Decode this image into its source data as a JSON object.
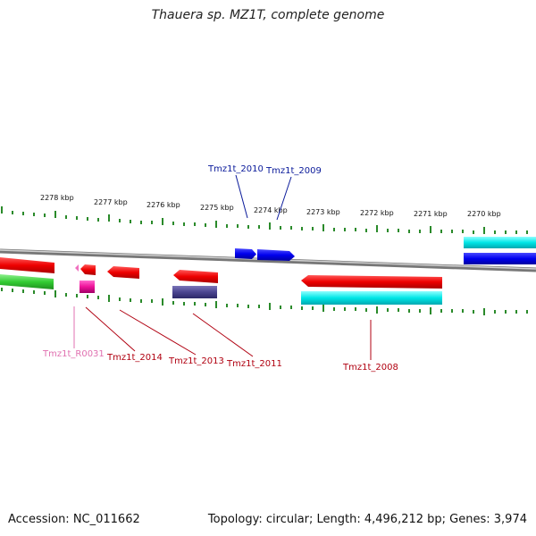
{
  "title": "Thauera sp. MZ1T, complete genome",
  "footer": {
    "accession": "Accession: NC_011662",
    "summary": "Topology: circular; Length: 4,496,212 bp; Genes: 3,974"
  },
  "colors": {
    "backbone": "#8a8a8a",
    "ticks": "#2a8a2a",
    "upper_label": "#0a1a9a",
    "lower_label": "#b00010",
    "rna_label": "#e070b0"
  },
  "kbp_ticks": [
    "2278 kbp",
    "2277 kbp",
    "2276 kbp",
    "2275 kbp",
    "2274 kbp",
    "2273 kbp",
    "2272 kbp",
    "2271 kbp",
    "2270 kbp"
  ],
  "gene_labels": [
    {
      "id": "Tmz1t_2010",
      "text": "Tmz1t_2010"
    },
    {
      "id": "Tmz1t_2009",
      "text": "Tmz1t_2009"
    },
    {
      "id": "Tmz1t_R0031",
      "text": "Tmz1t_R0031"
    },
    {
      "id": "Tmz1t_2014",
      "text": "Tmz1t_2014"
    },
    {
      "id": "Tmz1t_2013",
      "text": "Tmz1t_2013"
    },
    {
      "id": "Tmz1t_2011",
      "text": "Tmz1t_2011"
    },
    {
      "id": "Tmz1t_2008",
      "text": "Tmz1t_2008"
    }
  ]
}
